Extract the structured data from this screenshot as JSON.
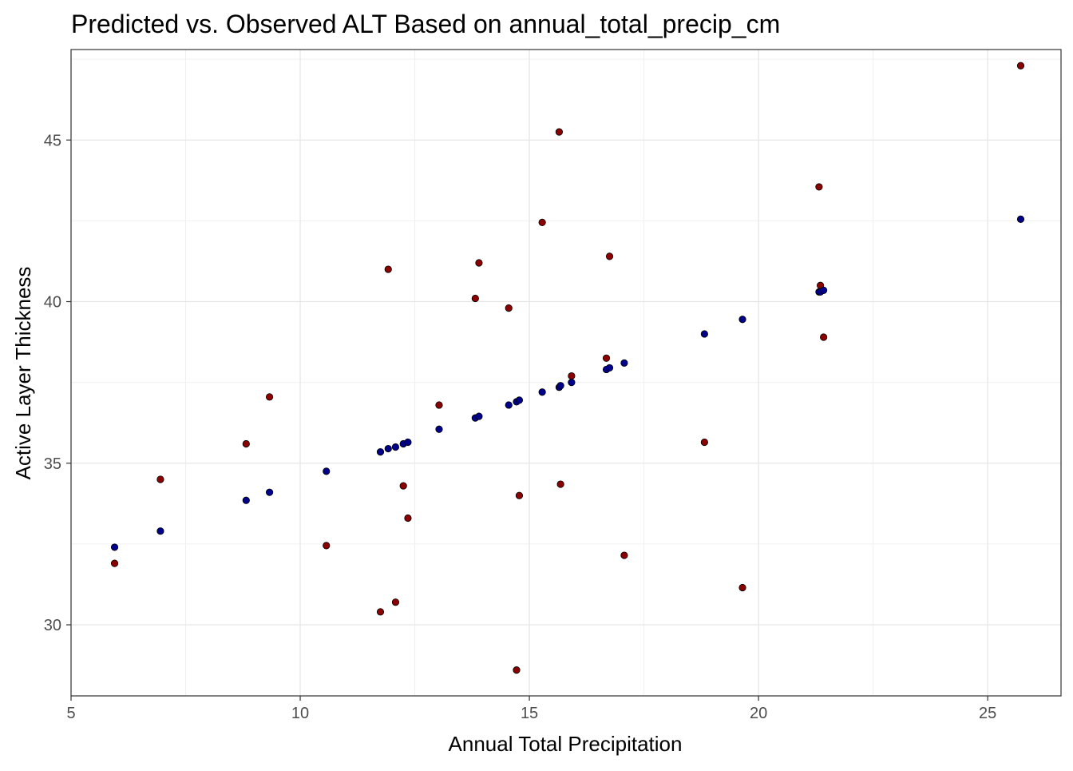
{
  "chart_data": {
    "type": "scatter",
    "title": "Predicted vs. Observed ALT Based on annual_total_precip_cm",
    "xlabel": "Annual Total Precipitation",
    "ylabel": "Active Layer Thickness",
    "xlim": [
      5,
      26.6
    ],
    "ylim": [
      27.8,
      47.8
    ],
    "x_ticks": [
      5,
      10,
      15,
      20,
      25
    ],
    "x_tick_labels": [
      "5",
      "10",
      "15",
      "20",
      "25"
    ],
    "y_ticks": [
      30,
      35,
      40,
      45
    ],
    "y_tick_labels": [
      "30",
      "35",
      "40",
      "45"
    ],
    "grid": true,
    "legend": "none",
    "series": [
      {
        "color": "#8b0000",
        "points": [
          {
            "x": 5.95,
            "y": 31.9
          },
          {
            "x": 6.95,
            "y": 34.5
          },
          {
            "x": 8.82,
            "y": 35.6
          },
          {
            "x": 9.33,
            "y": 37.05
          },
          {
            "x": 10.57,
            "y": 32.45
          },
          {
            "x": 11.75,
            "y": 30.4
          },
          {
            "x": 11.92,
            "y": 41.0
          },
          {
            "x": 12.08,
            "y": 30.7
          },
          {
            "x": 12.25,
            "y": 34.3
          },
          {
            "x": 12.35,
            "y": 33.3
          },
          {
            "x": 13.03,
            "y": 36.8
          },
          {
            "x": 13.82,
            "y": 40.1
          },
          {
            "x": 13.9,
            "y": 41.2
          },
          {
            "x": 14.55,
            "y": 39.8
          },
          {
            "x": 14.72,
            "y": 28.6
          },
          {
            "x": 14.78,
            "y": 34.0
          },
          {
            "x": 15.28,
            "y": 42.45
          },
          {
            "x": 15.65,
            "y": 45.25
          },
          {
            "x": 15.68,
            "y": 34.35
          },
          {
            "x": 15.92,
            "y": 37.7
          },
          {
            "x": 16.68,
            "y": 38.25
          },
          {
            "x": 16.75,
            "y": 41.4
          },
          {
            "x": 17.07,
            "y": 32.15
          },
          {
            "x": 18.82,
            "y": 35.65
          },
          {
            "x": 19.65,
            "y": 31.15
          },
          {
            "x": 21.32,
            "y": 43.55
          },
          {
            "x": 21.35,
            "y": 40.5
          },
          {
            "x": 21.42,
            "y": 38.9
          },
          {
            "x": 25.72,
            "y": 47.3
          }
        ]
      },
      {
        "color": "#00008b",
        "points": [
          {
            "x": 5.95,
            "y": 32.4
          },
          {
            "x": 6.95,
            "y": 32.9
          },
          {
            "x": 8.82,
            "y": 33.85
          },
          {
            "x": 9.33,
            "y": 34.1
          },
          {
            "x": 10.57,
            "y": 34.75
          },
          {
            "x": 11.75,
            "y": 35.35
          },
          {
            "x": 11.92,
            "y": 35.45
          },
          {
            "x": 12.08,
            "y": 35.5
          },
          {
            "x": 12.25,
            "y": 35.6
          },
          {
            "x": 12.35,
            "y": 35.65
          },
          {
            "x": 13.03,
            "y": 36.05
          },
          {
            "x": 13.82,
            "y": 36.4
          },
          {
            "x": 13.9,
            "y": 36.45
          },
          {
            "x": 14.55,
            "y": 36.8
          },
          {
            "x": 14.72,
            "y": 36.9
          },
          {
            "x": 14.78,
            "y": 36.95
          },
          {
            "x": 15.28,
            "y": 37.2
          },
          {
            "x": 15.65,
            "y": 37.35
          },
          {
            "x": 15.68,
            "y": 37.4
          },
          {
            "x": 15.92,
            "y": 37.5
          },
          {
            "x": 16.68,
            "y": 37.9
          },
          {
            "x": 16.75,
            "y": 37.95
          },
          {
            "x": 17.07,
            "y": 38.1
          },
          {
            "x": 18.82,
            "y": 39.0
          },
          {
            "x": 19.65,
            "y": 39.45
          },
          {
            "x": 21.32,
            "y": 40.3
          },
          {
            "x": 21.35,
            "y": 40.3
          },
          {
            "x": 21.42,
            "y": 40.35
          },
          {
            "x": 25.72,
            "y": 42.55
          }
        ]
      }
    ]
  }
}
